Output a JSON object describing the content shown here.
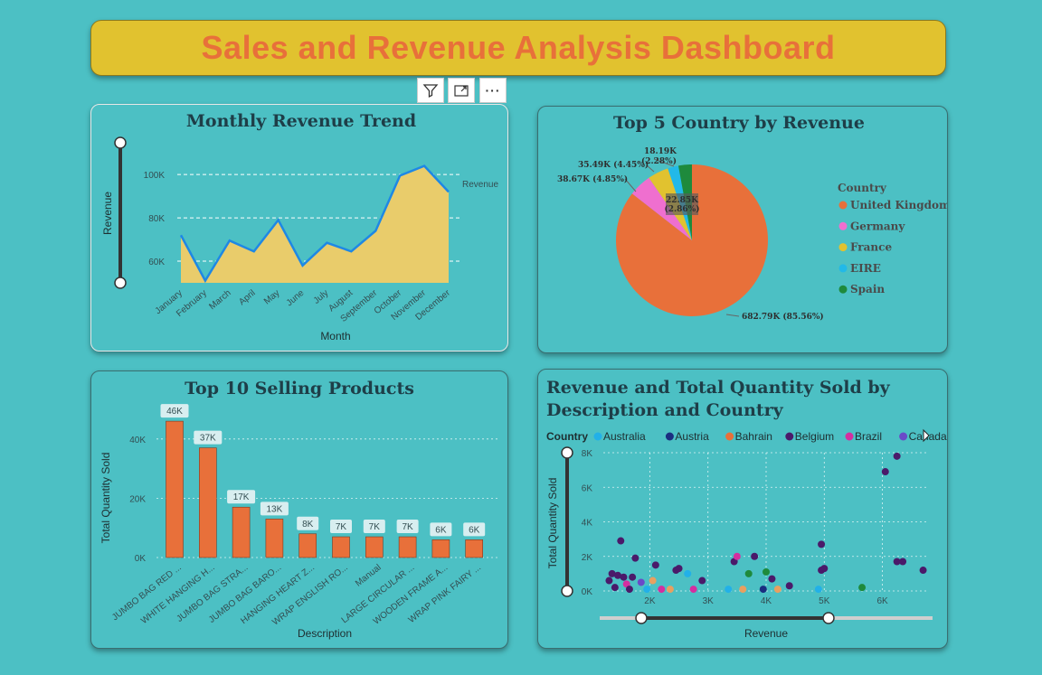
{
  "dashboard": {
    "title": "Sales and Revenue Analysis Dashboard"
  },
  "visual_toolbar": {
    "filter_icon": "filter-icon",
    "focus_icon": "focus-mode-icon",
    "more_label": "···"
  },
  "chart_data": [
    {
      "type": "area",
      "title": "Monthly Revenue Trend",
      "xlabel": "Month",
      "ylabel": "Revenue",
      "legend": "Revenue",
      "categories": [
        "January",
        "February",
        "March",
        "April",
        "May",
        "June",
        "July",
        "August",
        "September",
        "October",
        "November",
        "December"
      ],
      "values": [
        72000,
        51000,
        69500,
        64500,
        79000,
        58000,
        68500,
        64500,
        74000,
        99500,
        104000,
        92000
      ],
      "yticks": [
        "60K",
        "80K",
        "100K"
      ],
      "ylim": [
        50000,
        108000
      ],
      "color": "#e9cc6b",
      "line_color": "#1e88e5"
    },
    {
      "type": "pie",
      "title": "Top 5 Country by Revenue",
      "legend_title": "Country",
      "slices": [
        {
          "name": "United Kingdom",
          "value": 682.79,
          "label": "682.79K (85.56%)",
          "color": "#e8703a"
        },
        {
          "name": "Germany",
          "value": 38.67,
          "label": "38.67K (4.85%)",
          "color": "#ef6fcf"
        },
        {
          "name": "France",
          "value": 35.49,
          "label": "35.49K (4.45%)",
          "color": "#e1c22f"
        },
        {
          "name": "EIRE",
          "value": 18.19,
          "label": "18.19K (2.28%)",
          "color": "#22b9e8"
        },
        {
          "name": "Spain",
          "value": 22.85,
          "label": "22.85K (2.86%)",
          "color": "#1e8a3c"
        }
      ],
      "label_18": "18.19K",
      "label_18b": "(2.28%)",
      "label_22": "22.85K",
      "label_22b": "(2.86%)"
    },
    {
      "type": "bar",
      "title": "Top 10 Selling Products",
      "xlabel": "Description",
      "ylabel": "Total Quantity Sold",
      "categories": [
        "JUMBO BAG RED ...",
        "WHITE HANGING H...",
        "JUMBO BAG STRA...",
        "JUMBO BAG BARO...",
        "HANGING HEART Z...",
        "WRAP ENGLISH RO...",
        "Manual",
        "LARGE CIRCULAR ...",
        "WOODEN FRAME A...",
        "WRAP PINK FAIRY ..."
      ],
      "values": [
        46000,
        37000,
        17000,
        13000,
        8000,
        7000,
        7000,
        7000,
        6000,
        6000
      ],
      "labels": [
        "46K",
        "37K",
        "17K",
        "13K",
        "8K",
        "7K",
        "7K",
        "7K",
        "6K",
        "6K"
      ],
      "yticks": [
        "0K",
        "20K",
        "40K"
      ],
      "ylim": [
        0,
        50000
      ],
      "color": "#e8703a"
    },
    {
      "type": "scatter",
      "title_line1": "Revenue and Total Quantity Sold by",
      "title_line2": "Description and Country",
      "xlabel": "Revenue",
      "ylabel": "Total Quantity Sold",
      "legend_title": "Country",
      "legend": [
        {
          "name": "Australia",
          "color": "#22b0e8"
        },
        {
          "name": "Austria",
          "color": "#1a2e80"
        },
        {
          "name": "Bahrain",
          "color": "#e8703a"
        },
        {
          "name": "Belgium",
          "color": "#4a1a6a"
        },
        {
          "name": "Brazil",
          "color": "#d42ea0"
        },
        {
          "name": "Canada",
          "color": "#6a4ac8"
        }
      ],
      "xticks": [
        "2K",
        "3K",
        "4K",
        "5K",
        "6K"
      ],
      "yticks": [
        "0K",
        "2K",
        "4K",
        "6K",
        "8K"
      ],
      "xlim": [
        1200,
        6800
      ],
      "ylim": [
        0,
        8000
      ],
      "points": [
        {
          "x": 1300,
          "y": 600,
          "c": "#4a1a6a"
        },
        {
          "x": 1350,
          "y": 1000,
          "c": "#4a1a6a"
        },
        {
          "x": 1400,
          "y": 200,
          "c": "#4a1a6a"
        },
        {
          "x": 1450,
          "y": 900,
          "c": "#4a1a6a"
        },
        {
          "x": 1500,
          "y": 2900,
          "c": "#4a1a6a"
        },
        {
          "x": 1550,
          "y": 800,
          "c": "#4a1a6a"
        },
        {
          "x": 1600,
          "y": 400,
          "c": "#d42ea0"
        },
        {
          "x": 1650,
          "y": 100,
          "c": "#4a1a6a"
        },
        {
          "x": 1700,
          "y": 800,
          "c": "#4a1a6a"
        },
        {
          "x": 1750,
          "y": 1900,
          "c": "#4a1a6a"
        },
        {
          "x": 1850,
          "y": 500,
          "c": "#6a4ac8"
        },
        {
          "x": 1950,
          "y": 100,
          "c": "#22b0e8"
        },
        {
          "x": 2050,
          "y": 600,
          "c": "#e8a060"
        },
        {
          "x": 2100,
          "y": 1500,
          "c": "#4a1a6a"
        },
        {
          "x": 2200,
          "y": 100,
          "c": "#d42ea0"
        },
        {
          "x": 2350,
          "y": 100,
          "c": "#e8a060"
        },
        {
          "x": 2450,
          "y": 1200,
          "c": "#4a1a6a"
        },
        {
          "x": 2500,
          "y": 1300,
          "c": "#4a1a6a"
        },
        {
          "x": 2650,
          "y": 1000,
          "c": "#22b0e8"
        },
        {
          "x": 2750,
          "y": 100,
          "c": "#d42ea0"
        },
        {
          "x": 2900,
          "y": 600,
          "c": "#4a1a6a"
        },
        {
          "x": 3350,
          "y": 100,
          "c": "#22b0e8"
        },
        {
          "x": 3450,
          "y": 1700,
          "c": "#4a1a6a"
        },
        {
          "x": 3500,
          "y": 2000,
          "c": "#d42ea0"
        },
        {
          "x": 3600,
          "y": 100,
          "c": "#e8a060"
        },
        {
          "x": 3700,
          "y": 1000,
          "c": "#1e8a3c"
        },
        {
          "x": 3800,
          "y": 2000,
          "c": "#4a1a6a"
        },
        {
          "x": 3950,
          "y": 100,
          "c": "#1a2e80"
        },
        {
          "x": 4000,
          "y": 1100,
          "c": "#1e8a3c"
        },
        {
          "x": 4100,
          "y": 700,
          "c": "#4a1a6a"
        },
        {
          "x": 4200,
          "y": 100,
          "c": "#e8a060"
        },
        {
          "x": 4400,
          "y": 300,
          "c": "#4a1a6a"
        },
        {
          "x": 4900,
          "y": 100,
          "c": "#22b0e8"
        },
        {
          "x": 4950,
          "y": 1200,
          "c": "#4a1a6a"
        },
        {
          "x": 5000,
          "y": 1300,
          "c": "#4a1a6a"
        },
        {
          "x": 4950,
          "y": 2700,
          "c": "#4a1a6a"
        },
        {
          "x": 5650,
          "y": 200,
          "c": "#1e8a3c"
        },
        {
          "x": 6050,
          "y": 6900,
          "c": "#4a1a6a"
        },
        {
          "x": 6250,
          "y": 7800,
          "c": "#4a1a6a"
        },
        {
          "x": 6250,
          "y": 1700,
          "c": "#4a1a6a"
        },
        {
          "x": 6350,
          "y": 1700,
          "c": "#4a1a6a"
        },
        {
          "x": 6700,
          "y": 1200,
          "c": "#4a1a6a"
        }
      ]
    }
  ]
}
